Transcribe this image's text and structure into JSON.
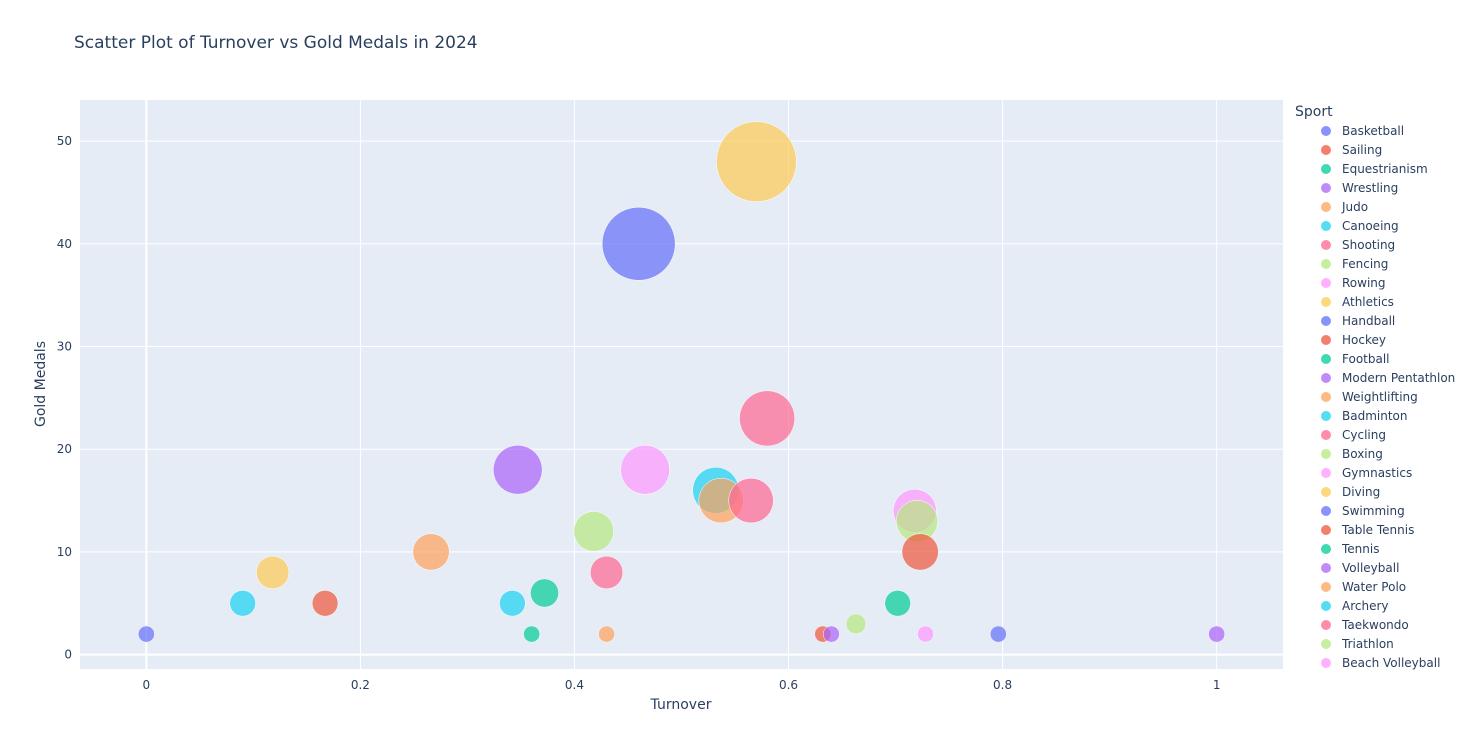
{
  "chart_data": {
    "type": "scatter",
    "title": "Scatter Plot of Turnover vs Gold Medals in 2024",
    "xlabel": "Turnover",
    "ylabel": "Gold Medals",
    "xlim": [
      -0.062,
      1.062
    ],
    "ylim": [
      -1.4,
      54
    ],
    "xticks": [
      0,
      0.2,
      0.4,
      0.6,
      0.8,
      1
    ],
    "xtick_labels": [
      "0",
      "0.2",
      "0.4",
      "0.6",
      "0.8",
      "1"
    ],
    "yticks": [
      0,
      10,
      20,
      30,
      40,
      50
    ],
    "ytick_labels": [
      "0",
      "10",
      "20",
      "30",
      "40",
      "50"
    ],
    "grid": true,
    "legend_title": "Sport",
    "legend_placement": "right",
    "size_encoding": "Gold Medals",
    "series": [
      {
        "name": "Basketball",
        "color": "#636efa",
        "x": [
          0.0
        ],
        "y": [
          2
        ]
      },
      {
        "name": "Sailing",
        "color": "#EF553B",
        "x": [
          0.632
        ],
        "y": [
          2
        ]
      },
      {
        "name": "Equestrianism",
        "color": "#00cc96",
        "x": [
          0.36
        ],
        "y": [
          2
        ]
      },
      {
        "name": "Wrestling",
        "color": "#ab63fa",
        "x": [
          0.64
        ],
        "y": [
          2
        ]
      },
      {
        "name": "Judo",
        "color": "#FFA15A",
        "x": [
          0.43
        ],
        "y": [
          2
        ]
      },
      {
        "name": "Canoeing",
        "color": "#19d3f3",
        "x": [
          0.09
        ],
        "y": [
          5
        ]
      },
      {
        "name": "Shooting",
        "color": "#FF6692",
        "x": [
          0.43
        ],
        "y": [
          8
        ]
      },
      {
        "name": "Fencing",
        "color": "#B6E880",
        "x": [
          0.663
        ],
        "y": [
          3
        ]
      },
      {
        "name": "Rowing",
        "color": "#FF97FF",
        "x": [
          0.728
        ],
        "y": [
          2
        ]
      },
      {
        "name": "Athletics",
        "color": "#FECB52",
        "x": [
          0.57
        ],
        "y": [
          48
        ]
      },
      {
        "name": "Handball",
        "color": "#636efa",
        "x": [
          0.46
        ],
        "y": [
          40
        ]
      },
      {
        "name": "Hockey",
        "color": "#EF553B",
        "x": [
          0.167
        ],
        "y": [
          5
        ]
      },
      {
        "name": "Football",
        "color": "#00cc96",
        "x": [
          0.372
        ],
        "y": [
          6
        ]
      },
      {
        "name": "Modern Pentathlon",
        "color": "#ab63fa",
        "x": [
          1.0
        ],
        "y": [
          2
        ]
      },
      {
        "name": "Weightlifting",
        "color": "#FFA15A",
        "x": [
          0.266
        ],
        "y": [
          10
        ]
      },
      {
        "name": "Badminton",
        "color": "#19d3f3",
        "x": [
          0.342
        ],
        "y": [
          5
        ]
      },
      {
        "name": "Cycling",
        "color": "#FF6692",
        "x": [
          0.58
        ],
        "y": [
          23
        ]
      },
      {
        "name": "Boxing",
        "color": "#B6E880",
        "x": [
          0.418
        ],
        "y": [
          12
        ]
      },
      {
        "name": "Gymnastics",
        "color": "#FF97FF",
        "x": [
          0.466
        ],
        "y": [
          18
        ]
      },
      {
        "name": "Diving",
        "color": "#FECB52",
        "x": [
          0.118
        ],
        "y": [
          8
        ]
      },
      {
        "name": "Swimming",
        "color": "#636efa",
        "x": [
          0.796
        ],
        "y": [
          2
        ]
      },
      {
        "name": "Table Tennis",
        "color": "#EF553B",
        "x": [
          0.723
        ],
        "y": [
          10
        ]
      },
      {
        "name": "Tennis",
        "color": "#00cc96",
        "x": [
          0.702
        ],
        "y": [
          5
        ]
      },
      {
        "name": "Volleyball",
        "color": "#ab63fa",
        "x": [
          0.347
        ],
        "y": [
          18
        ]
      },
      {
        "name": "Water Polo",
        "color": "#FFA15A",
        "x": [
          0.537
        ],
        "y": [
          15
        ]
      },
      {
        "name": "Archery",
        "color": "#19d3f3",
        "x": [
          0.532
        ],
        "y": [
          16
        ]
      },
      {
        "name": "Taekwondo",
        "color": "#FF6692",
        "x": [
          0.565
        ],
        "y": [
          15
        ]
      },
      {
        "name": "Triathlon",
        "color": "#B6E880",
        "x": [
          0.72
        ],
        "y": [
          13
        ]
      },
      {
        "name": "Beach Volleyball",
        "color": "#FF97FF",
        "x": [
          0.718
        ],
        "y": [
          14
        ]
      }
    ]
  }
}
